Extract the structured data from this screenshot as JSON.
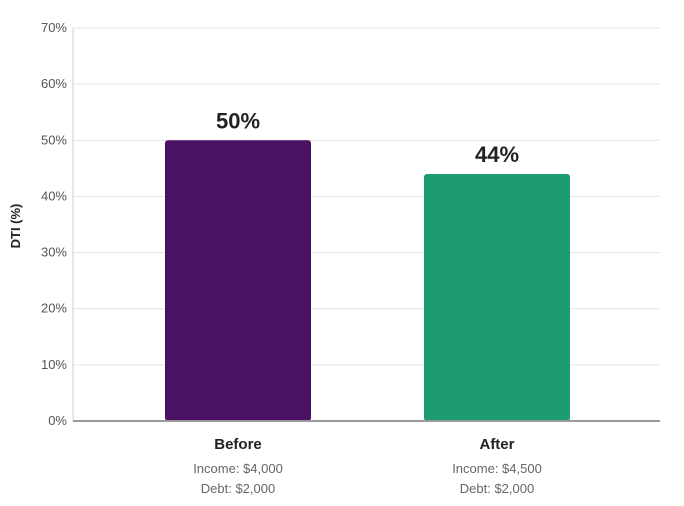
{
  "chart_data": {
    "type": "bar",
    "ylabel": "DTI (%)",
    "ylim": [
      0,
      70
    ],
    "yticks": [
      0,
      10,
      20,
      30,
      40,
      50,
      60,
      70
    ],
    "ytick_labels": [
      "0%",
      "10%",
      "20%",
      "30%",
      "40%",
      "50%",
      "60%",
      "70%"
    ],
    "grid": true,
    "categories": [
      "Before",
      "After"
    ],
    "values": [
      50,
      44
    ],
    "value_labels": [
      "50%",
      "44%"
    ],
    "bar_colors": [
      "#4b1264",
      "#1e9c71"
    ],
    "subtitles": [
      [
        "Income: $4,000",
        "Debt: $2,000"
      ],
      [
        "Income: $4,500",
        "Debt: $2,000"
      ]
    ]
  }
}
